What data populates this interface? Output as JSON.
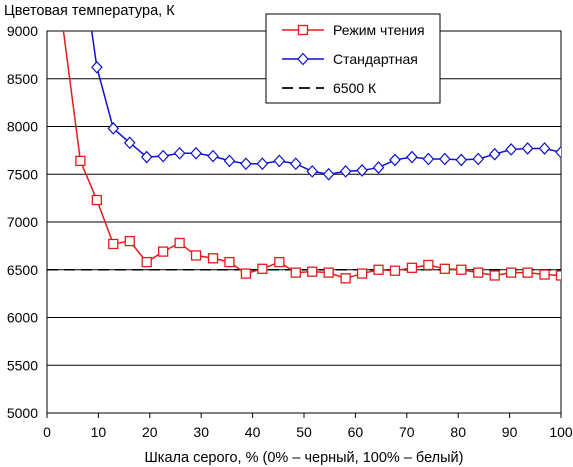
{
  "chart_data": {
    "type": "line",
    "title": "",
    "ylabel": "Цветовая температура, К",
    "xlabel": "Шкала серого, % (0% – черный, 100% – белый)",
    "xlim": [
      0,
      100
    ],
    "ylim": [
      5000,
      9000
    ],
    "xticks": [
      "0",
      "10",
      "20",
      "30",
      "40",
      "50",
      "60",
      "70",
      "80",
      "90",
      "100"
    ],
    "yticks": [
      "5000",
      "5500",
      "6000",
      "6500",
      "7000",
      "7500",
      "8000",
      "8500",
      "9000"
    ],
    "grid": "horizontal",
    "legend_position": "top-right",
    "series": [
      {
        "name": "Режим чтения",
        "color": "#e21b1b",
        "marker": "square",
        "points": [
          [
            3.2,
            9000
          ],
          [
            6.5,
            7640
          ],
          [
            9.7,
            7230
          ],
          [
            12.9,
            6770
          ],
          [
            16.1,
            6800
          ],
          [
            19.4,
            6580
          ],
          [
            22.6,
            6690
          ],
          [
            25.8,
            6780
          ],
          [
            29.0,
            6650
          ],
          [
            32.3,
            6620
          ],
          [
            35.5,
            6580
          ],
          [
            38.7,
            6460
          ],
          [
            41.9,
            6510
          ],
          [
            45.2,
            6580
          ],
          [
            48.4,
            6470
          ],
          [
            51.6,
            6480
          ],
          [
            54.8,
            6470
          ],
          [
            58.1,
            6410
          ],
          [
            61.3,
            6460
          ],
          [
            64.5,
            6500
          ],
          [
            67.7,
            6490
          ],
          [
            71.0,
            6520
          ],
          [
            74.2,
            6550
          ],
          [
            77.4,
            6510
          ],
          [
            80.6,
            6500
          ],
          [
            83.9,
            6470
          ],
          [
            87.1,
            6440
          ],
          [
            90.3,
            6470
          ],
          [
            93.5,
            6470
          ],
          [
            96.8,
            6450
          ],
          [
            100,
            6440
          ]
        ]
      },
      {
        "name": "Стандартная",
        "color": "#1010d0",
        "marker": "diamond",
        "points": [
          [
            8.7,
            9000
          ],
          [
            9.7,
            8620
          ],
          [
            12.9,
            7980
          ],
          [
            16.1,
            7830
          ],
          [
            19.4,
            7680
          ],
          [
            22.6,
            7690
          ],
          [
            25.8,
            7720
          ],
          [
            29.0,
            7720
          ],
          [
            32.3,
            7690
          ],
          [
            35.5,
            7640
          ],
          [
            38.7,
            7610
          ],
          [
            41.9,
            7610
          ],
          [
            45.2,
            7640
          ],
          [
            48.4,
            7610
          ],
          [
            51.6,
            7530
          ],
          [
            54.8,
            7500
          ],
          [
            58.1,
            7530
          ],
          [
            61.3,
            7540
          ],
          [
            64.5,
            7570
          ],
          [
            67.7,
            7650
          ],
          [
            71.0,
            7680
          ],
          [
            74.2,
            7660
          ],
          [
            77.4,
            7660
          ],
          [
            80.6,
            7650
          ],
          [
            83.9,
            7660
          ],
          [
            87.1,
            7710
          ],
          [
            90.3,
            7760
          ],
          [
            93.5,
            7770
          ],
          [
            96.8,
            7770
          ],
          [
            100,
            7730
          ]
        ]
      },
      {
        "name": "6500 К",
        "color": "#000000",
        "style": "dashed",
        "points": [
          [
            0,
            6500
          ],
          [
            100,
            6500
          ]
        ]
      }
    ]
  }
}
